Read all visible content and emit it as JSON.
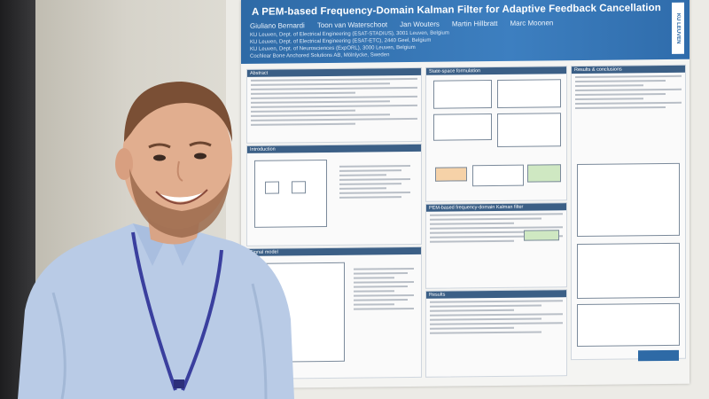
{
  "poster": {
    "title": "A PEM-based Frequency-Domain Kalman Filter for Adaptive Feedback Cancellation",
    "authors": [
      "Giuliano Bernardi",
      "Toon van Waterschoot",
      "Jan Wouters",
      "Martin Hillbratt",
      "Marc Moonen"
    ],
    "affiliations": [
      "KU Leuven, Dept. of Electrical Engineering (ESAT-STADIUS), 3001 Leuven, Belgium",
      "KU Leuven, Dept. of Electrical Engineering (ESAT-ETC), 2440 Geel, Belgium",
      "KU Leuven, Dept. of Neurosciences (ExpORL), 3000 Leuven, Belgium",
      "Cochlear Bone Anchored Solutions AB, Mölnlycke, Sweden"
    ],
    "logo_text": "KU LEUVEN",
    "sections": [
      "Abstract",
      "Introduction",
      "Signal model",
      "State-space formulation",
      "PEM-based frequency-domain Kalman filter",
      "Results",
      "Results & conclusions"
    ]
  },
  "colors": {
    "poster_header": "#2e6aa6",
    "section_header": "#3b5f86",
    "shirt": "#b9cbe6",
    "lanyard": "#3a3f9e",
    "frame": "#1d1d1f"
  }
}
